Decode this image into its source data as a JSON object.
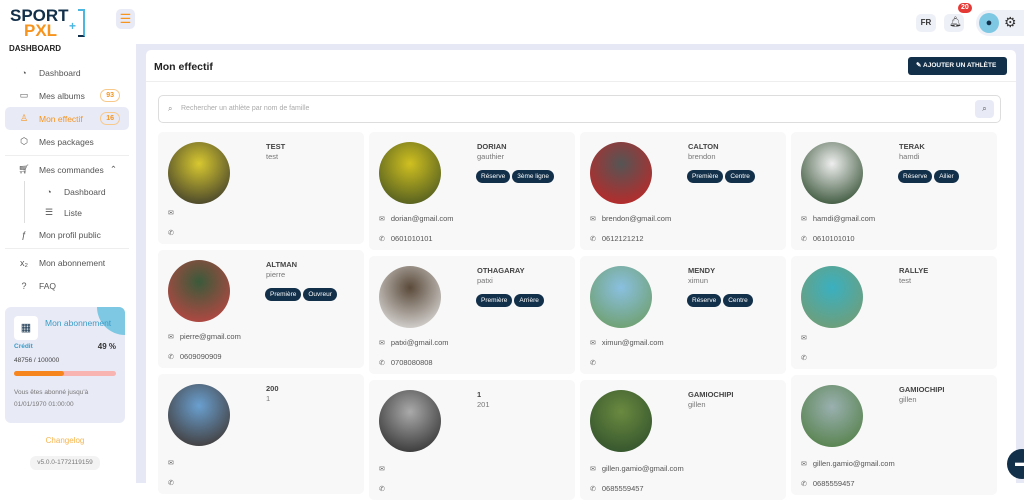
{
  "logo": {
    "line1": "SPORT",
    "line2": "PXL",
    "plus": "+"
  },
  "header": {
    "lang": "FR",
    "notifications": "20"
  },
  "sidebar": {
    "section": "DASHBOARD",
    "items": [
      {
        "label": "Dashboard",
        "icon": "gauge-icon"
      },
      {
        "label": "Mes albums",
        "count": "93",
        "icon": "gallery-icon"
      },
      {
        "label": "Mon effectif",
        "count": "16",
        "icon": "team-icon",
        "active": true
      },
      {
        "label": "Mes packages",
        "icon": "package-icon"
      },
      {
        "label": "Mes commandes",
        "icon": "cart-icon"
      },
      {
        "label": "Dashboard",
        "icon": "gauge-icon"
      },
      {
        "label": "Liste",
        "icon": "list-icon"
      },
      {
        "label": "Mon profil public",
        "icon": "profile-icon"
      },
      {
        "label": "Mon abonnement",
        "icon": "subscript-icon"
      },
      {
        "label": "FAQ",
        "icon": "question-icon"
      }
    ],
    "subscription": {
      "title": "Mon abonnement",
      "credit_label": "Crédit",
      "percent": "49 %",
      "progress": 0.49,
      "value": "48756 / 100000",
      "until": "Vous êtes abonné jusqu'à",
      "until_date": "01/01/1970 01:00:00"
    },
    "changelog": "Changelog",
    "version": "v5.0.0-1772119159"
  },
  "main": {
    "title": "Mon effectif",
    "add_button": "AJOUTER UN ATHLÈTE",
    "search_placeholder": "Rechercher un athlète par nom de famille"
  },
  "athletes": [
    {
      "last": "TEST",
      "first": "test",
      "tags": [],
      "email": "",
      "phone": ""
    },
    {
      "last": "ALTMAN",
      "first": "pierre",
      "tags": [
        "Première",
        "Ouvreur"
      ],
      "email": "pierre@gmail.com",
      "phone": "0609090909"
    },
    {
      "last": "200",
      "first": "1",
      "tags": [],
      "email": "",
      "phone": ""
    },
    {
      "last": "DORIAN",
      "first": "gauthier",
      "tags": [
        "Réserve",
        "3ème ligne"
      ],
      "email": "dorian@gmail.com",
      "phone": "0601010101"
    },
    {
      "last": "OTHAGARAY",
      "first": "patxi",
      "tags": [
        "Première",
        "Arrière"
      ],
      "email": "patxi@gmail.com",
      "phone": "0708080808"
    },
    {
      "last": "1",
      "first": "201",
      "tags": [],
      "email": "",
      "phone": ""
    },
    {
      "last": "CALTON",
      "first": "brendon",
      "tags": [
        "Première",
        "Centre"
      ],
      "email": "brendon@gmail.com",
      "phone": "0612121212"
    },
    {
      "last": "MENDY",
      "first": "ximun",
      "tags": [
        "Réserve",
        "Centre"
      ],
      "email": "ximun@gmail.com",
      "phone": ""
    },
    {
      "last": "GAMIOCHIPI",
      "first": "gillen",
      "tags": [],
      "email": "gillen.gamio@gmail.com",
      "phone": "0685559457"
    },
    {
      "last": "TERAK",
      "first": "hamdi",
      "tags": [
        "Réserve",
        "Ailier"
      ],
      "email": "hamdi@gmail.com",
      "phone": "0610101010"
    },
    {
      "last": "RALLYE",
      "first": "test",
      "tags": [],
      "email": "",
      "phone": ""
    },
    {
      "last": "GAMIOCHIPI",
      "first": "gillen",
      "tags": [],
      "email": "gillen.gamio@gmail.com",
      "phone": "0685559457"
    }
  ]
}
